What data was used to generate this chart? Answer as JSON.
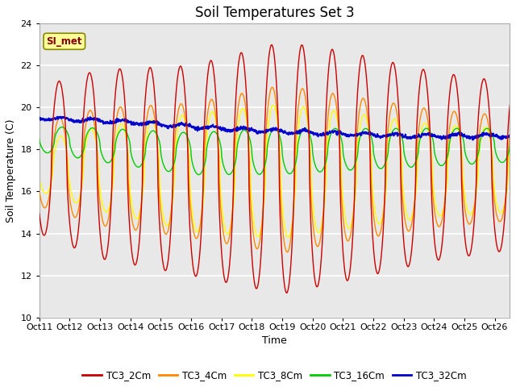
{
  "title": "Soil Temperatures Set 3",
  "xlabel": "Time",
  "ylabel": "Soil Temperature (C)",
  "ylim": [
    10,
    24
  ],
  "yticks": [
    10,
    12,
    14,
    16,
    18,
    20,
    22,
    24
  ],
  "xtick_labels": [
    "Oct 11",
    "Oct 12",
    "Oct 13",
    "Oct 14",
    "Oct 15",
    "Oct 16",
    "Oct 17",
    "Oct 18",
    "Oct 19",
    "Oct 20",
    "Oct 21",
    "Oct 22",
    "Oct 23",
    "Oct 24",
    "Oct 25",
    "Oct 26"
  ],
  "series_colors": [
    "#cc0000",
    "#ff8800",
    "#ffff00",
    "#00cc00",
    "#0000cc"
  ],
  "series_names": [
    "TC3_2Cm",
    "TC3_4Cm",
    "TC3_8Cm",
    "TC3_16Cm",
    "TC3_32Cm"
  ],
  "annotation_text": "SI_met",
  "annotation_color": "#880000",
  "annotation_bg": "#ffff99",
  "plot_bg": "#e8e8e8",
  "grid_color": "#ffffff",
  "title_fontsize": 12,
  "axis_fontsize": 8,
  "label_fontsize": 9
}
